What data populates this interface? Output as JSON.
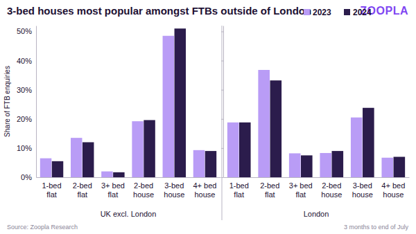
{
  "chart_data": [
    {
      "type": "bar",
      "title": "3-bed houses most popular amongst FTBs outside of London",
      "ylabel": "Share of FTB enquiries",
      "xlabel": "UK excl. London",
      "categories": [
        "1-bed flat",
        "2-bed flat",
        "3+ bed flat",
        "2-bed house",
        "3-bed house",
        "4+ bed house"
      ],
      "series": [
        {
          "name": "2023",
          "color": "#b99cf6",
          "values": [
            6.5,
            13.5,
            2.0,
            19.2,
            48.5,
            9.3
          ]
        },
        {
          "name": "2024",
          "color": "#2b1c4c",
          "values": [
            5.5,
            12.0,
            1.7,
            19.6,
            51.0,
            9.0
          ]
        }
      ],
      "ylim": [
        0,
        52
      ],
      "yticks": [
        {
          "value": 0,
          "label": "0%"
        },
        {
          "value": 10,
          "label": "10%"
        },
        {
          "value": 20,
          "label": "20%"
        },
        {
          "value": 30,
          "label": "30%"
        },
        {
          "value": 40,
          "label": "40%"
        },
        {
          "value": 50,
          "label": "50%"
        }
      ],
      "legend": "upper right"
    },
    {
      "type": "bar",
      "xlabel": "London",
      "categories": [
        "1-bed flat",
        "2-bed flat",
        "3+ bed flat",
        "2-bed house",
        "3-bed house",
        "4+ bed house"
      ],
      "series": [
        {
          "color": "#b99cf6",
          "values": [
            18.8,
            36.8,
            8.2,
            8.3,
            20.5,
            6.7
          ]
        },
        {
          "color": "#2b1c4c",
          "values": [
            18.8,
            33.2,
            7.5,
            9.0,
            23.8,
            7.0
          ]
        }
      ],
      "ylim": [
        0,
        52
      ],
      "yticks": [
        0,
        10,
        20,
        30,
        40,
        50
      ],
      "tick_labels": "x"
    }
  ],
  "logo": "ZOOPLA",
  "source": "Source: Zoopla Research",
  "note": "3 months to end of July"
}
